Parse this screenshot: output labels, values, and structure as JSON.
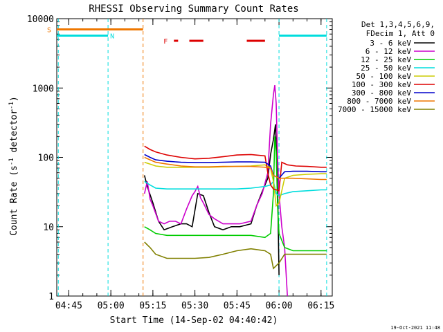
{
  "chart_data": {
    "type": "line",
    "title": "RHESSI Observing Summary Count Rates",
    "xlabel": "Start Time (14-Sep-02 04:40:42)",
    "ylabel_main": "Count Rate (s",
    "ylabel_sup1": "-1",
    "ylabel_mid": " detector",
    "ylabel_sup2": "-1",
    "ylabel_end": ")",
    "y_scale": "log",
    "ylim": [
      1,
      10000
    ],
    "xlim": [
      "04:40:42",
      "06:19:00"
    ],
    "x_ticks": [
      "04:45",
      "05:00",
      "05:15",
      "05:30",
      "05:45",
      "06:00",
      "06:15"
    ],
    "y_ticks": [
      "1",
      "10",
      "100",
      "1000",
      "10000"
    ],
    "footer_date": "19-Oct-2021 11:48",
    "legend_header": [
      "Det 1,3,4,5,6,9,",
      "FDecim 1, Att 0"
    ],
    "legend_position": "outside-right",
    "series": [
      {
        "name": "3 - 6 keV",
        "color": "#000000",
        "points": [
          [
            "05:12",
            55
          ],
          [
            "05:13",
            38
          ],
          [
            "05:15",
            22
          ],
          [
            "05:17",
            12
          ],
          [
            "05:19",
            9
          ],
          [
            "05:22",
            10
          ],
          [
            "05:25",
            11
          ],
          [
            "05:27",
            11
          ],
          [
            "05:29",
            10
          ],
          [
            "05:31",
            30
          ],
          [
            "05:33",
            28
          ],
          [
            "05:35",
            16
          ],
          [
            "05:37",
            10
          ],
          [
            "05:40",
            9
          ],
          [
            "05:43",
            10
          ],
          [
            "05:46",
            10
          ],
          [
            "05:50",
            11
          ],
          [
            "05:52",
            20
          ],
          [
            "05:54",
            32
          ],
          [
            "05:56",
            50
          ],
          [
            "05:57",
            110
          ],
          [
            "05:58",
            180
          ],
          [
            "05:58:45",
            300
          ],
          [
            "05:59:30",
            40
          ],
          [
            "06:00",
            2
          ]
        ]
      },
      {
        "name": "6 - 12 keV",
        "color": "#cc00cc",
        "points": [
          [
            "05:12",
            30
          ],
          [
            "05:13",
            45
          ],
          [
            "05:14",
            25
          ],
          [
            "05:15",
            20
          ],
          [
            "05:17",
            12
          ],
          [
            "05:19",
            11
          ],
          [
            "05:21",
            12
          ],
          [
            "05:23",
            12
          ],
          [
            "05:25",
            11
          ],
          [
            "05:27",
            18
          ],
          [
            "05:29",
            28
          ],
          [
            "05:30",
            32
          ],
          [
            "05:31",
            38
          ],
          [
            "05:32",
            26
          ],
          [
            "05:33",
            22
          ],
          [
            "05:35",
            15
          ],
          [
            "05:37",
            13
          ],
          [
            "05:40",
            11
          ],
          [
            "05:43",
            11
          ],
          [
            "05:46",
            11
          ],
          [
            "05:50",
            12
          ],
          [
            "05:52",
            20
          ],
          [
            "05:54",
            30
          ],
          [
            "05:56",
            60
          ],
          [
            "05:57",
            300
          ],
          [
            "05:58",
            800
          ],
          [
            "05:58:30",
            1100
          ],
          [
            "05:59",
            600
          ],
          [
            "05:59:30",
            100
          ],
          [
            "06:00",
            30
          ],
          [
            "06:01",
            10
          ],
          [
            "06:02",
            5
          ],
          [
            "06:03",
            1
          ]
        ]
      },
      {
        "name": "12 - 25 keV",
        "color": "#00cc00",
        "points": [
          [
            "05:12",
            10
          ],
          [
            "05:14",
            9
          ],
          [
            "05:16",
            8
          ],
          [
            "05:20",
            7.5
          ],
          [
            "05:25",
            7.5
          ],
          [
            "05:30",
            7.5
          ],
          [
            "05:35",
            7.5
          ],
          [
            "05:40",
            7.5
          ],
          [
            "05:45",
            7.5
          ],
          [
            "05:50",
            7.5
          ],
          [
            "05:55",
            7
          ],
          [
            "05:57",
            8
          ],
          [
            "05:58",
            30
          ],
          [
            "05:58:30",
            200
          ],
          [
            "05:59",
            120
          ],
          [
            "05:59:30",
            20
          ],
          [
            "06:00",
            8
          ],
          [
            "06:02",
            5
          ],
          [
            "06:05",
            4.5
          ],
          [
            "06:10",
            4.5
          ],
          [
            "06:15",
            4.5
          ],
          [
            "06:17",
            4.5
          ]
        ]
      },
      {
        "name": "25 - 50 keV",
        "color": "#00dddd",
        "points": [
          [
            "05:12",
            45
          ],
          [
            "05:14",
            40
          ],
          [
            "05:16",
            36
          ],
          [
            "05:20",
            35
          ],
          [
            "05:25",
            35
          ],
          [
            "05:30",
            35
          ],
          [
            "05:35",
            35
          ],
          [
            "05:40",
            35
          ],
          [
            "05:45",
            35
          ],
          [
            "05:50",
            36
          ],
          [
            "05:55",
            38
          ],
          [
            "05:57",
            40
          ],
          [
            "05:58",
            45
          ],
          [
            "05:59",
            30
          ],
          [
            "06:00",
            28
          ],
          [
            "06:02",
            30
          ],
          [
            "06:05",
            32
          ],
          [
            "06:10",
            33
          ],
          [
            "06:15",
            34
          ],
          [
            "06:17",
            34
          ]
        ]
      },
      {
        "name": "50 - 100 keV",
        "color": "#cccc00",
        "points": [
          [
            "05:12",
            85
          ],
          [
            "05:14",
            80
          ],
          [
            "05:16",
            75
          ],
          [
            "05:20",
            72
          ],
          [
            "05:25",
            72
          ],
          [
            "05:30",
            72
          ],
          [
            "05:35",
            72
          ],
          [
            "05:40",
            73
          ],
          [
            "05:45",
            74
          ],
          [
            "05:50",
            75
          ],
          [
            "05:55",
            78
          ],
          [
            "05:57",
            70
          ],
          [
            "05:58",
            45
          ],
          [
            "05:59",
            20
          ],
          [
            "06:00",
            22
          ],
          [
            "06:02",
            50
          ],
          [
            "06:05",
            55
          ],
          [
            "06:10",
            57
          ],
          [
            "06:15",
            58
          ],
          [
            "06:17",
            58
          ]
        ]
      },
      {
        "name": "100 - 300 keV",
        "color": "#dd0000",
        "points": [
          [
            "05:12",
            145
          ],
          [
            "05:14",
            130
          ],
          [
            "05:16",
            120
          ],
          [
            "05:20",
            108
          ],
          [
            "05:25",
            100
          ],
          [
            "05:30",
            95
          ],
          [
            "05:35",
            97
          ],
          [
            "05:40",
            102
          ],
          [
            "05:45",
            108
          ],
          [
            "05:50",
            110
          ],
          [
            "05:55",
            105
          ],
          [
            "05:56",
            60
          ],
          [
            "05:57",
            40
          ],
          [
            "05:58",
            35
          ],
          [
            "06:00",
            33
          ],
          [
            "06:01",
            85
          ],
          [
            "06:03",
            78
          ],
          [
            "06:06",
            75
          ],
          [
            "06:10",
            74
          ],
          [
            "06:15",
            72
          ],
          [
            "06:17",
            72
          ]
        ]
      },
      {
        "name": "300 - 800 keV",
        "color": "#0000cc",
        "points": [
          [
            "05:12",
            110
          ],
          [
            "05:14",
            100
          ],
          [
            "05:16",
            92
          ],
          [
            "05:20",
            88
          ],
          [
            "05:25",
            85
          ],
          [
            "05:30",
            84
          ],
          [
            "05:35",
            84
          ],
          [
            "05:40",
            85
          ],
          [
            "05:45",
            86
          ],
          [
            "05:50",
            86
          ],
          [
            "05:55",
            85
          ],
          [
            "05:57",
            75
          ],
          [
            "05:58",
            55
          ],
          [
            "06:00",
            50
          ],
          [
            "06:02",
            62
          ],
          [
            "06:05",
            63
          ],
          [
            "06:10",
            63
          ],
          [
            "06:15",
            62
          ],
          [
            "06:17",
            62
          ]
        ]
      },
      {
        "name": "800 - 7000 keV",
        "color": "#ee7700",
        "points": [
          [
            "05:12",
            100
          ],
          [
            "05:14",
            92
          ],
          [
            "05:16",
            85
          ],
          [
            "05:20",
            80
          ],
          [
            "05:25",
            75
          ],
          [
            "05:30",
            73
          ],
          [
            "05:35",
            73
          ],
          [
            "05:40",
            74
          ],
          [
            "05:45",
            74
          ],
          [
            "05:50",
            74
          ],
          [
            "05:55",
            72
          ],
          [
            "05:57",
            70
          ],
          [
            "05:58",
            55
          ],
          [
            "06:00",
            50
          ],
          [
            "06:02",
            50
          ],
          [
            "06:05",
            50
          ],
          [
            "06:10",
            49
          ],
          [
            "06:15",
            48
          ],
          [
            "06:17",
            48
          ]
        ]
      },
      {
        "name": "7000 - 15000 keV",
        "color": "#808000",
        "points": [
          [
            "05:12",
            6
          ],
          [
            "05:14",
            5
          ],
          [
            "05:16",
            4
          ],
          [
            "05:20",
            3.5
          ],
          [
            "05:25",
            3.5
          ],
          [
            "05:30",
            3.5
          ],
          [
            "05:35",
            3.6
          ],
          [
            "05:40",
            4
          ],
          [
            "05:45",
            4.5
          ],
          [
            "05:50",
            4.8
          ],
          [
            "05:55",
            4.5
          ],
          [
            "05:57",
            4
          ],
          [
            "05:58",
            2.5
          ],
          [
            "06:00",
            3
          ],
          [
            "06:02",
            4
          ],
          [
            "06:05",
            4
          ],
          [
            "06:10",
            4
          ],
          [
            "06:15",
            4
          ],
          [
            "06:17",
            4
          ]
        ]
      }
    ],
    "flags": [
      {
        "label": "S",
        "color": "#ee7700",
        "y": 7000,
        "start": "04:40:42",
        "end": "05:11:30"
      },
      {
        "label": "N",
        "color": "#00dddd",
        "y": 5700,
        "start": "04:40:42",
        "end": "04:59:00"
      },
      {
        "label": "",
        "color": "#00dddd",
        "y": 5700,
        "start": "06:00:00",
        "end": "06:17:00"
      }
    ],
    "flare_label": "F",
    "flare_color": "#dd0000",
    "flare_intervals": [
      [
        "05:22:30",
        "05:24:00"
      ],
      [
        "05:28:00",
        "05:33:00"
      ],
      [
        "05:48:30",
        "05:55:00"
      ]
    ],
    "flare_y": 4800,
    "vlines": [
      {
        "t": "04:41:15",
        "color": "#00dddd"
      },
      {
        "t": "04:59:00",
        "color": "#00dddd"
      },
      {
        "t": "05:11:30",
        "color": "#ee7700"
      },
      {
        "t": "06:00:00",
        "color": "#00dddd"
      },
      {
        "t": "06:17:00",
        "color": "#00dddd"
      }
    ],
    "grid": false
  }
}
